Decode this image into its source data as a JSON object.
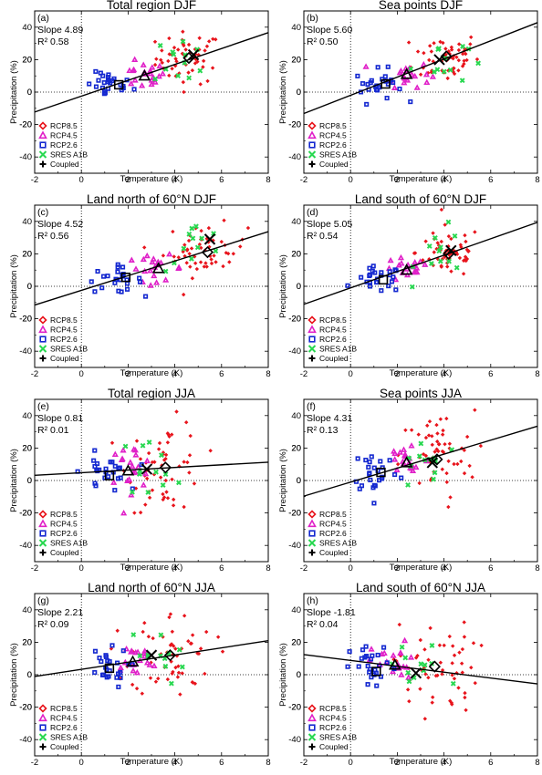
{
  "legend": {
    "entries": [
      {
        "label": "RCP8.5",
        "color": "#e8141c",
        "symbol": "diamond"
      },
      {
        "label": "RCP4.5",
        "color": "#e020c8",
        "symbol": "triangle"
      },
      {
        "label": "RCP2.6",
        "color": "#1428d0",
        "symbol": "square"
      },
      {
        "label": "SRES A1B",
        "color": "#28d850",
        "symbol": "x"
      },
      {
        "label": "Coupled",
        "color": "#000000",
        "symbol": "plus"
      }
    ]
  },
  "chart_data": [
    {
      "type": "scatter",
      "label": "(a)",
      "title": "Total region DJF",
      "slope": "4.89",
      "r2": "0.58",
      "xlabel": "Temperature (K)",
      "ylabel": "Precipitation (%)",
      "xlim": [
        -2,
        8
      ],
      "ylim": [
        -50,
        50
      ],
      "xticks": [
        "-2",
        "0",
        "2",
        "4",
        "6",
        "8"
      ],
      "yticks": [
        "-40",
        "-20",
        "0",
        "20",
        "40"
      ],
      "fit": {
        "intercept": -2.5,
        "slope": 4.89
      },
      "means": [
        {
          "s": "RCP2.6",
          "x": 1.6,
          "y": 4.5
        },
        {
          "s": "RCP4.5",
          "x": 2.7,
          "y": 10
        },
        {
          "s": "RCP8.5",
          "x": 4.6,
          "y": 21
        },
        {
          "s": "SRES A1B",
          "x": 4.8,
          "y": 23
        }
      ],
      "clusters": [
        {
          "s": "RCP8.5",
          "cx": 4.6,
          "cy": 21,
          "sx": 0.7,
          "sy": 8,
          "n": 55
        },
        {
          "s": "RCP4.5",
          "cx": 2.6,
          "cy": 10,
          "sx": 0.5,
          "sy": 4,
          "n": 20
        },
        {
          "s": "RCP2.6",
          "cx": 1.2,
          "cy": 4,
          "sx": 0.5,
          "sy": 4,
          "n": 25
        },
        {
          "s": "SRES A1B",
          "cx": 4.3,
          "cy": 20,
          "sx": 0.6,
          "sy": 8,
          "n": 12
        }
      ]
    },
    {
      "type": "scatter",
      "label": "(b)",
      "title": "Sea points DJF",
      "slope": "5.60",
      "r2": "0.50",
      "xlabel": "Temperature (K)",
      "ylabel": "Precipitation (%)",
      "xlim": [
        -2,
        8
      ],
      "ylim": [
        -50,
        50
      ],
      "xticks": [
        "-2",
        "0",
        "2",
        "4",
        "6",
        "8"
      ],
      "yticks": [
        "-40",
        "-20",
        "0",
        "20",
        "40"
      ],
      "fit": {
        "intercept": -2.0,
        "slope": 5.6
      },
      "means": [
        {
          "s": "RCP2.6",
          "x": 1.5,
          "y": 5
        },
        {
          "s": "RCP4.5",
          "x": 2.4,
          "y": 11
        },
        {
          "s": "RCP8.5",
          "x": 4.1,
          "y": 22
        },
        {
          "s": "SRES A1B",
          "x": 3.8,
          "y": 20
        }
      ],
      "clusters": [
        {
          "s": "RCP8.5",
          "cx": 4.1,
          "cy": 22,
          "sx": 0.7,
          "sy": 8,
          "n": 55
        },
        {
          "s": "RCP4.5",
          "cx": 2.4,
          "cy": 11,
          "sx": 0.5,
          "sy": 4,
          "n": 20
        },
        {
          "s": "RCP2.6",
          "cx": 1.2,
          "cy": 4,
          "sx": 0.5,
          "sy": 5,
          "n": 25
        },
        {
          "s": "SRES A1B",
          "cx": 3.8,
          "cy": 20,
          "sx": 0.6,
          "sy": 8,
          "n": 12
        }
      ]
    },
    {
      "type": "scatter",
      "label": "(c)",
      "title": "Land north of 60°N DJF",
      "slope": "4.52",
      "r2": "0.56",
      "xlabel": "Temperature (K)",
      "ylabel": "Precipitation (%)",
      "xlim": [
        -2,
        8
      ],
      "ylim": [
        -50,
        50
      ],
      "xticks": [
        "-2",
        "0",
        "2",
        "4",
        "6",
        "8"
      ],
      "yticks": [
        "-40",
        "-20",
        "0",
        "20",
        "40"
      ],
      "fit": {
        "intercept": -2.5,
        "slope": 4.52
      },
      "means": [
        {
          "s": "RCP2.6",
          "x": 1.9,
          "y": 5.5
        },
        {
          "s": "RCP4.5",
          "x": 3.3,
          "y": 11
        },
        {
          "s": "RCP8.5",
          "x": 5.4,
          "y": 21
        },
        {
          "s": "SRES A1B",
          "x": 5.5,
          "y": 29
        }
      ],
      "clusters": [
        {
          "s": "RCP8.5",
          "cx": 5.3,
          "cy": 22,
          "sx": 0.9,
          "sy": 8,
          "n": 55
        },
        {
          "s": "RCP4.5",
          "cx": 3.2,
          "cy": 11,
          "sx": 0.6,
          "sy": 4,
          "n": 20
        },
        {
          "s": "RCP2.6",
          "cx": 1.4,
          "cy": 4,
          "sx": 0.6,
          "sy": 4,
          "n": 25
        },
        {
          "s": "SRES A1B",
          "cx": 5.0,
          "cy": 24,
          "sx": 0.7,
          "sy": 8,
          "n": 12
        }
      ]
    },
    {
      "type": "scatter",
      "label": "(d)",
      "title": "Land south of 60°N DJF",
      "slope": "5.05",
      "r2": "0.54",
      "xlabel": "Temperature (K)",
      "ylabel": "Precipitation (%)",
      "xlim": [
        -2,
        8
      ],
      "ylim": [
        -50,
        50
      ],
      "xticks": [
        "-2",
        "0",
        "2",
        "4",
        "6",
        "8"
      ],
      "yticks": [
        "-40",
        "-20",
        "0",
        "20",
        "40"
      ],
      "fit": {
        "intercept": -1.0,
        "slope": 5.05
      },
      "means": [
        {
          "s": "RCP2.6",
          "x": 1.4,
          "y": 4
        },
        {
          "s": "RCP4.5",
          "x": 2.4,
          "y": 10
        },
        {
          "s": "RCP8.5",
          "x": 4.2,
          "y": 20
        },
        {
          "s": "SRES A1B",
          "x": 4.3,
          "y": 22
        }
      ],
      "clusters": [
        {
          "s": "RCP8.5",
          "cx": 4.2,
          "cy": 21,
          "sx": 0.7,
          "sy": 8,
          "n": 55
        },
        {
          "s": "RCP4.5",
          "cx": 2.4,
          "cy": 10,
          "sx": 0.5,
          "sy": 4,
          "n": 20
        },
        {
          "s": "RCP2.6",
          "cx": 1.2,
          "cy": 4,
          "sx": 0.5,
          "sy": 4,
          "n": 25
        },
        {
          "s": "SRES A1B",
          "cx": 4.0,
          "cy": 20,
          "sx": 0.6,
          "sy": 8,
          "n": 12
        }
      ]
    },
    {
      "type": "scatter",
      "label": "(e)",
      "title": "Total region JJA",
      "slope": "0.81",
      "r2": "0.01",
      "xlabel": "Temperature (K)",
      "ylabel": "Precipitation (%)",
      "xlim": [
        -2,
        8
      ],
      "ylim": [
        -50,
        50
      ],
      "xticks": [
        "-2",
        "0",
        "2",
        "4",
        "6",
        "8"
      ],
      "yticks": [
        "-40",
        "-20",
        "0",
        "20",
        "40"
      ],
      "fit": {
        "intercept": 4.8,
        "slope": 0.81
      },
      "means": [
        {
          "s": "RCP2.6",
          "x": 1.2,
          "y": 3
        },
        {
          "s": "RCP4.5",
          "x": 2.0,
          "y": 6
        },
        {
          "s": "RCP8.5",
          "x": 3.6,
          "y": 8
        },
        {
          "s": "SRES A1B",
          "x": 2.8,
          "y": 7
        }
      ],
      "clusters": [
        {
          "s": "RCP8.5",
          "cx": 3.6,
          "cy": 9,
          "sx": 0.8,
          "sy": 14,
          "n": 55
        },
        {
          "s": "RCP4.5",
          "cx": 2.1,
          "cy": 8,
          "sx": 0.5,
          "sy": 7,
          "n": 20
        },
        {
          "s": "RCP2.6",
          "cx": 1.0,
          "cy": 5,
          "sx": 0.5,
          "sy": 6,
          "n": 25
        },
        {
          "s": "SRES A1B",
          "cx": 3.0,
          "cy": 8,
          "sx": 0.7,
          "sy": 9,
          "n": 12
        }
      ]
    },
    {
      "type": "scatter",
      "label": "(f)",
      "title": "Sea points JJA",
      "slope": "4.31",
      "r2": "0.13",
      "xlabel": "Temperature (K)",
      "ylabel": "Precipitation (%)",
      "xlim": [
        -2,
        8
      ],
      "ylim": [
        -50,
        50
      ],
      "xticks": [
        "-2",
        "0",
        "2",
        "4",
        "6",
        "8"
      ],
      "yticks": [
        "-40",
        "-20",
        "0",
        "20",
        "40"
      ],
      "fit": {
        "intercept": -1.0,
        "slope": 4.31
      },
      "means": [
        {
          "s": "RCP2.6",
          "x": 1.3,
          "y": 5
        },
        {
          "s": "RCP4.5",
          "x": 2.4,
          "y": 11
        },
        {
          "s": "RCP8.5",
          "x": 3.7,
          "y": 13
        },
        {
          "s": "SRES A1B",
          "x": 3.5,
          "y": 11
        }
      ],
      "clusters": [
        {
          "s": "RCP8.5",
          "cx": 3.7,
          "cy": 15,
          "sx": 0.8,
          "sy": 14,
          "n": 55
        },
        {
          "s": "RCP4.5",
          "cx": 2.4,
          "cy": 12,
          "sx": 0.5,
          "sy": 7,
          "n": 20
        },
        {
          "s": "RCP2.6",
          "cx": 1.1,
          "cy": 6,
          "sx": 0.5,
          "sy": 7,
          "n": 25
        },
        {
          "s": "SRES A1B",
          "cx": 3.3,
          "cy": 12,
          "sx": 0.7,
          "sy": 9,
          "n": 12
        }
      ]
    },
    {
      "type": "scatter",
      "label": "(g)",
      "title": "Land north of 60°N JJA",
      "slope": "2.21",
      "r2": "0.09",
      "xlabel": "Temperature (K)",
      "ylabel": "Precipitation (%)",
      "xlim": [
        -2,
        8
      ],
      "ylim": [
        -50,
        50
      ],
      "xticks": [
        "-2",
        "0",
        "2",
        "4",
        "6",
        "8"
      ],
      "yticks": [
        "-40",
        "-20",
        "0",
        "20",
        "40"
      ],
      "fit": {
        "intercept": 3.3,
        "slope": 2.21
      },
      "means": [
        {
          "s": "RCP2.6",
          "x": 1.2,
          "y": 4
        },
        {
          "s": "RCP4.5",
          "x": 2.2,
          "y": 8
        },
        {
          "s": "RCP8.5",
          "x": 3.8,
          "y": 12
        },
        {
          "s": "SRES A1B",
          "x": 3.0,
          "y": 12
        }
      ],
      "clusters": [
        {
          "s": "RCP8.5",
          "cx": 3.9,
          "cy": 13,
          "sx": 0.9,
          "sy": 13,
          "n": 55
        },
        {
          "s": "RCP4.5",
          "cx": 2.2,
          "cy": 8,
          "sx": 0.5,
          "sy": 6,
          "n": 20
        },
        {
          "s": "RCP2.6",
          "cx": 1.0,
          "cy": 4,
          "sx": 0.5,
          "sy": 6,
          "n": 25
        },
        {
          "s": "SRES A1B",
          "cx": 3.1,
          "cy": 11,
          "sx": 0.7,
          "sy": 9,
          "n": 12
        }
      ]
    },
    {
      "type": "scatter",
      "label": "(h)",
      "title": "Land south of 60°N JJA",
      "slope": "-1.81",
      "r2": "0.04",
      "xlabel": "Temperature (K)",
      "ylabel": "Precipitation (%)",
      "xlim": [
        -2,
        8
      ],
      "ylim": [
        -50,
        50
      ],
      "xticks": [
        "-2",
        "0",
        "2",
        "4",
        "6",
        "8"
      ],
      "yticks": [
        "-40",
        "-20",
        "0",
        "20",
        "40"
      ],
      "fit": {
        "intercept": 8.8,
        "slope": -1.81
      },
      "means": [
        {
          "s": "RCP2.6",
          "x": 1.1,
          "y": 2
        },
        {
          "s": "RCP4.5",
          "x": 1.9,
          "y": 6
        },
        {
          "s": "RCP8.5",
          "x": 3.6,
          "y": 5
        },
        {
          "s": "SRES A1B",
          "x": 2.8,
          "y": 1
        }
      ],
      "clusters": [
        {
          "s": "RCP8.5",
          "cx": 3.6,
          "cy": 4,
          "sx": 0.9,
          "sy": 14,
          "n": 55
        },
        {
          "s": "RCP4.5",
          "cx": 1.9,
          "cy": 6,
          "sx": 0.5,
          "sy": 7,
          "n": 20
        },
        {
          "s": "RCP2.6",
          "cx": 1.0,
          "cy": 4,
          "sx": 0.5,
          "sy": 7,
          "n": 25
        },
        {
          "s": "SRES A1B",
          "cx": 2.8,
          "cy": 3,
          "sx": 0.7,
          "sy": 9,
          "n": 12
        }
      ]
    }
  ]
}
